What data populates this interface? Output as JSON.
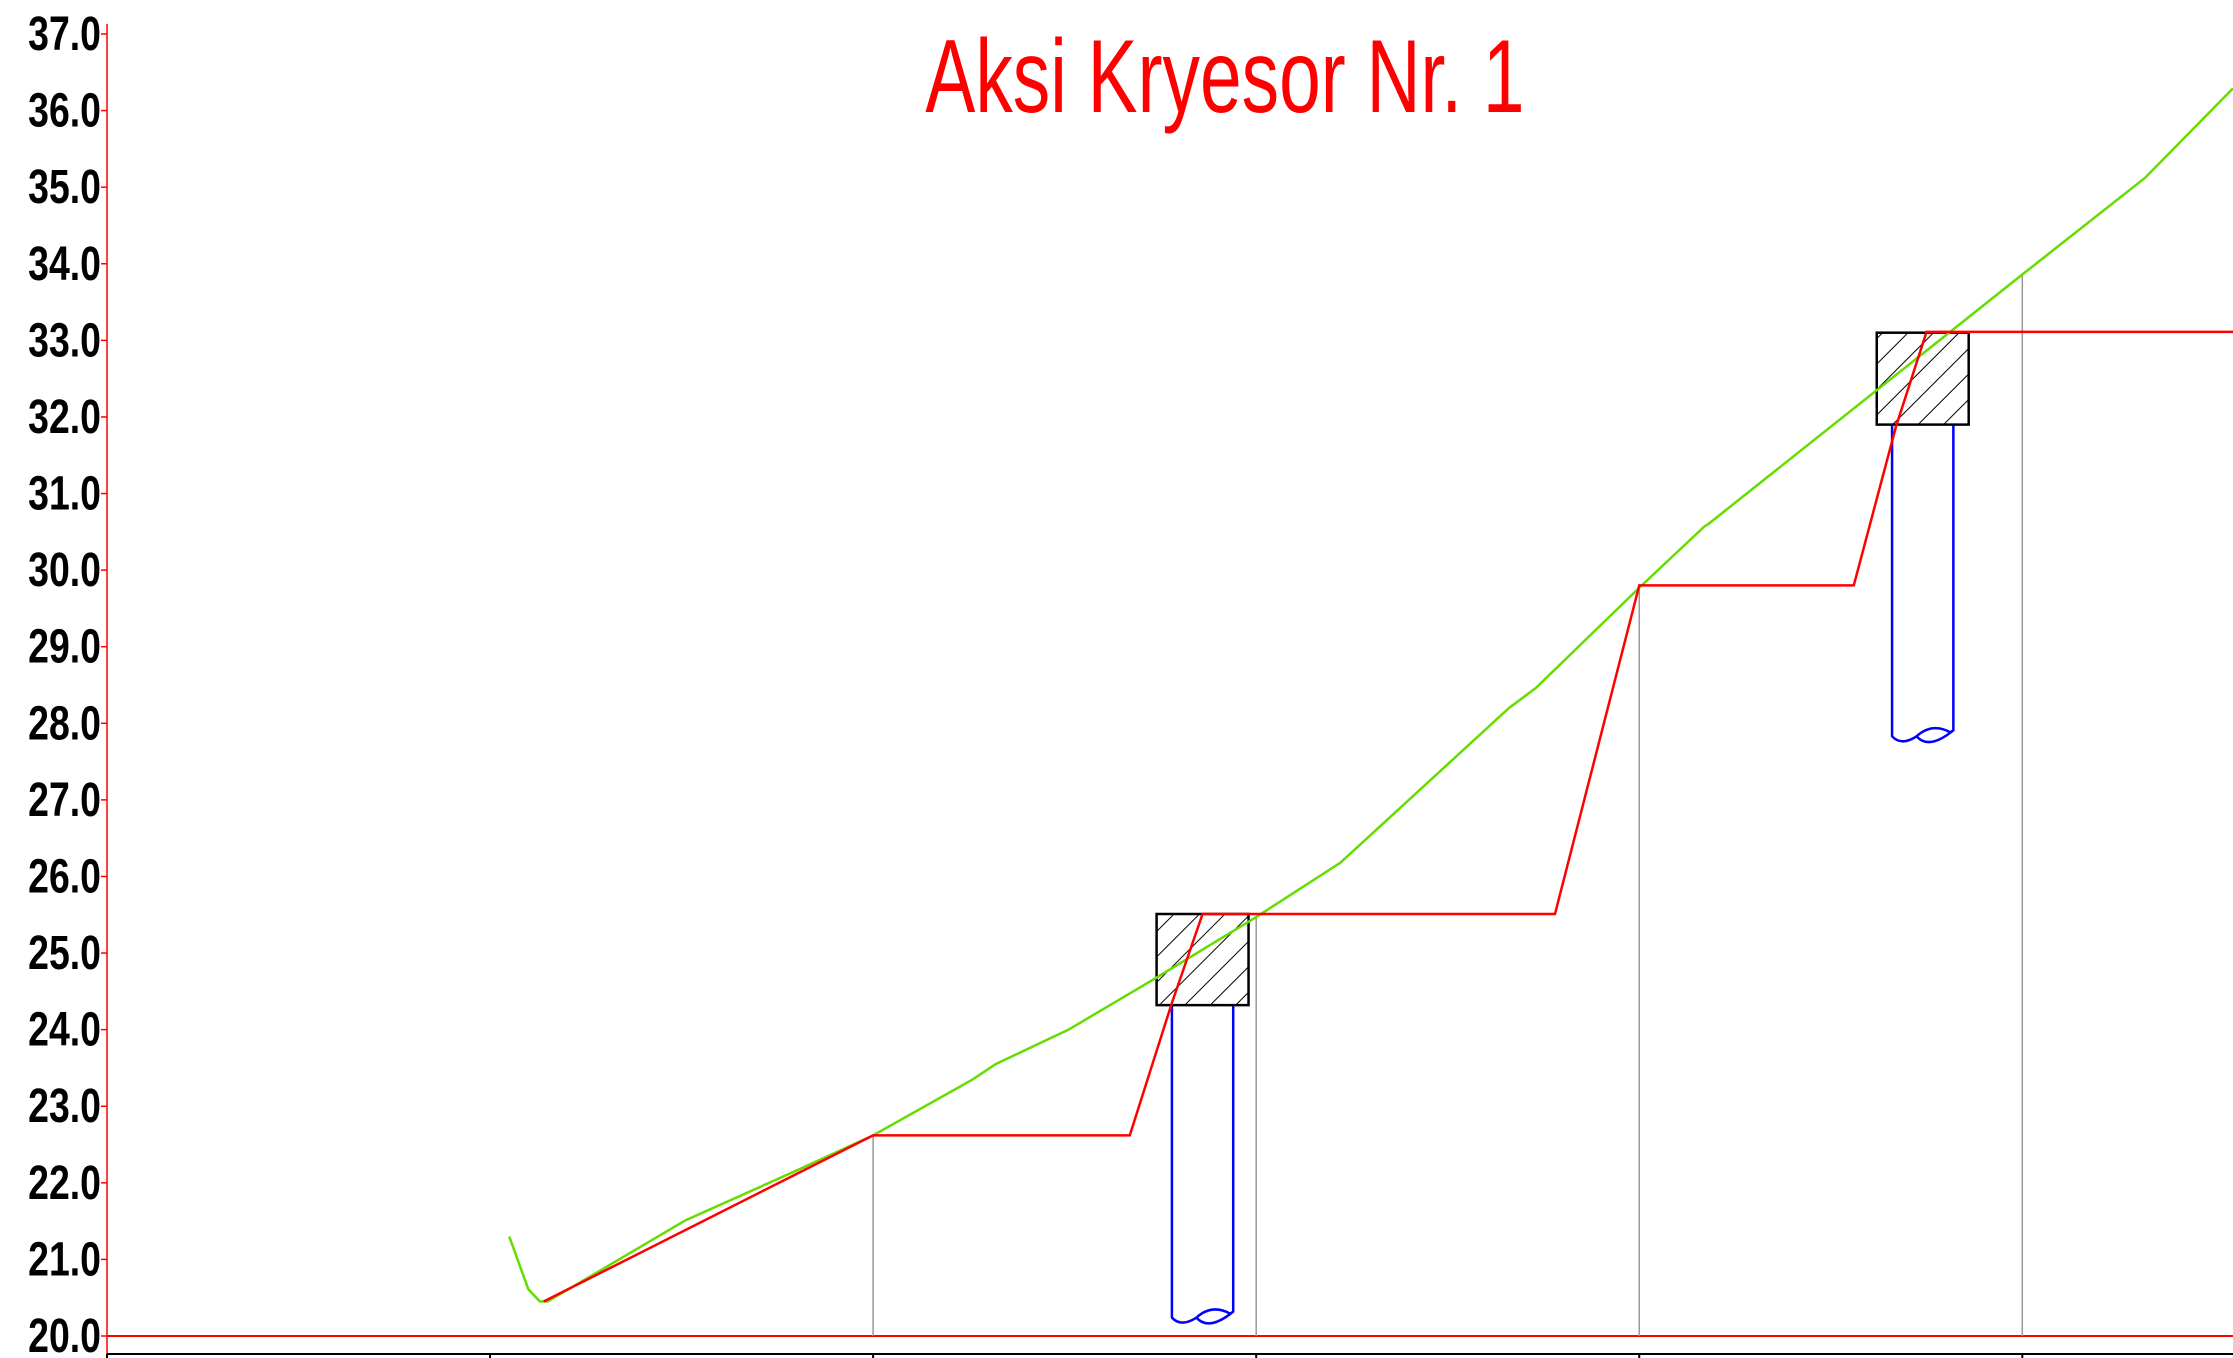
{
  "chart_data": {
    "type": "line",
    "title": "Aksi Kryesor Nr. 1",
    "xlim": [
      0,
      5.55
    ],
    "xticks": [
      0,
      1,
      2,
      3,
      4,
      5
    ],
    "ylim": [
      20,
      37
    ],
    "yticks": [
      {
        "value": 20,
        "label": "20.0"
      },
      {
        "value": 21,
        "label": "21.0"
      },
      {
        "value": 22,
        "label": "22.0"
      },
      {
        "value": 23,
        "label": "23.0"
      },
      {
        "value": 24,
        "label": "24.0"
      },
      {
        "value": 25,
        "label": "25.0"
      },
      {
        "value": 26,
        "label": "26.0"
      },
      {
        "value": 27,
        "label": "27.0"
      },
      {
        "value": 28,
        "label": "28.0"
      },
      {
        "value": 29,
        "label": "29.0"
      },
      {
        "value": 30,
        "label": "30.0"
      },
      {
        "value": 31,
        "label": "31.0"
      },
      {
        "value": 32,
        "label": "32.0"
      },
      {
        "value": 33,
        "label": "33.0"
      },
      {
        "value": 34,
        "label": "34.0"
      },
      {
        "value": 35,
        "label": "35.0"
      },
      {
        "value": 36,
        "label": "36.0"
      },
      {
        "value": 37,
        "label": "37.0"
      }
    ],
    "series": [
      {
        "color": "#66dd00",
        "x": [
          1.05,
          1.1,
          1.13,
          1.15,
          1.51,
          1.8,
          2.0,
          2.26,
          2.32,
          2.51,
          2.73,
          3.0,
          3.22,
          3.66,
          3.73,
          4.0,
          4.17,
          4.18,
          5.0,
          5.32,
          5.55
        ],
        "values": [
          21.3,
          20.61,
          20.45,
          20.45,
          21.51,
          22.16,
          22.62,
          23.35,
          23.55,
          24.0,
          24.65,
          25.47,
          26.18,
          28.2,
          28.46,
          29.77,
          30.57,
          30.6,
          33.86,
          35.12,
          36.29
        ]
      },
      {
        "color": "#ff0000",
        "x": [
          1.14,
          2.0,
          2.67,
          2.78,
          2.86,
          3.78,
          4.0,
          4.56,
          4.67,
          4.75,
          5.55
        ],
        "values": [
          20.45,
          22.62,
          22.62,
          24.35,
          25.51,
          25.51,
          29.8,
          29.8,
          31.87,
          33.11,
          33.11
        ]
      }
    ],
    "piers": [
      {
        "x": 2.86,
        "cap_width": 0.24,
        "pile_width": 0.16,
        "cap_top": 25.51,
        "cap_bottom": 24.32,
        "pile_bottom": 20.24
      },
      {
        "x": 4.74,
        "cap_width": 0.24,
        "pile_width": 0.16,
        "cap_top": 33.1,
        "cap_bottom": 31.9,
        "pile_bottom": 27.83
      }
    ]
  }
}
